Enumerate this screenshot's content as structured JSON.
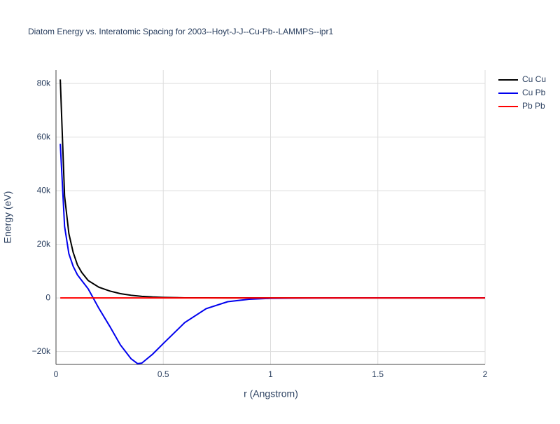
{
  "chart_data": {
    "type": "line",
    "title": "Diatom Energy vs. Interatomic Spacing for 2003--Hoyt-J-J--Cu-Pb--LAMMPS--ipr1",
    "x_label": "r (Angstrom)",
    "y_label": "Energy (eV)",
    "x": [
      0.02,
      0.04,
      0.06,
      0.08,
      0.1,
      0.12,
      0.15,
      0.2,
      0.25,
      0.3,
      0.35,
      0.38,
      0.4,
      0.45,
      0.5,
      0.6,
      0.7,
      0.8,
      0.9,
      1.0,
      1.2,
      1.5,
      2.0
    ],
    "series": [
      {
        "name": "Cu Cu",
        "color": "#000000",
        "values": [
          81500,
          38000,
          24000,
          17000,
          12300,
          9500,
          6500,
          4000,
          2600,
          1600,
          1000,
          750,
          600,
          350,
          200,
          50,
          20,
          0,
          0,
          0,
          0,
          0,
          0
        ]
      },
      {
        "name": "Cu Pb",
        "color": "#0000ee",
        "values": [
          57500,
          26700,
          16500,
          11800,
          8600,
          6500,
          3400,
          -3900,
          -10500,
          -17500,
          -22700,
          -24500,
          -24300,
          -21000,
          -17000,
          -9200,
          -4000,
          -1400,
          -500,
          -150,
          -20,
          0,
          0
        ]
      },
      {
        "name": "Pb Pb",
        "color": "#ff0000",
        "values": [
          0,
          0,
          0,
          0,
          0,
          0,
          0,
          0,
          0,
          0,
          0,
          0,
          0,
          0,
          0,
          0,
          0,
          0,
          0,
          0,
          0,
          0,
          0
        ]
      }
    ],
    "xlim": [
      0,
      2
    ],
    "xticks": [
      0,
      0.5,
      1,
      1.5,
      2
    ],
    "ylim": [
      -24800,
      85000
    ],
    "yticks": [
      {
        "value": -20000,
        "label": "−20k"
      },
      0,
      {
        "value": 20000,
        "label": "20k"
      },
      {
        "value": 40000,
        "label": "40k"
      },
      {
        "value": 60000,
        "label": "60k"
      },
      {
        "value": 80000,
        "label": "80k"
      }
    ],
    "grid": true
  }
}
